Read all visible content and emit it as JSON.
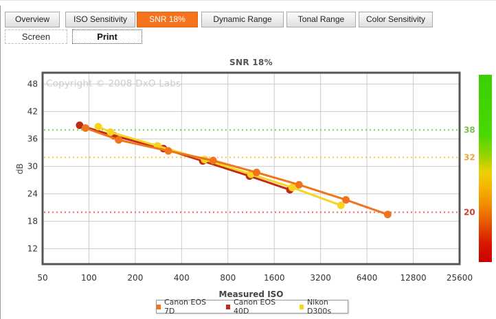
{
  "tabs": {
    "items": [
      {
        "label": "Overview",
        "active": false
      },
      {
        "label": "ISO Sensitivity",
        "active": false
      },
      {
        "label": "SNR 18%",
        "active": true
      },
      {
        "label": "Dynamic Range",
        "active": false
      },
      {
        "label": "Tonal Range",
        "active": false
      },
      {
        "label": "Color Sensitivity",
        "active": false
      }
    ]
  },
  "subtabs": {
    "items": [
      {
        "label": "Screen",
        "active": false
      },
      {
        "label": "Print",
        "active": true
      }
    ]
  },
  "watermark": "Copyright © 2008 DxO Labs",
  "accent_color": "#f5731d",
  "chart_data": {
    "type": "line",
    "title": "SNR 18%",
    "xlabel": "Measured ISO",
    "ylabel": "dB",
    "x_scale": "log2",
    "grid": true,
    "legend_position": "bottom",
    "xlim": [
      50,
      25600
    ],
    "ylim": [
      8.65,
      50.5
    ],
    "xticks": [
      50,
      100,
      200,
      400,
      800,
      1600,
      3200,
      6400,
      12800,
      25600
    ],
    "yticks": [
      12,
      18,
      24,
      30,
      36,
      42,
      48
    ],
    "ref_lines": [
      {
        "value": 38,
        "label": "38",
        "line_color": "#66d944",
        "label_color": "#7fbf4d"
      },
      {
        "value": 32,
        "label": "32",
        "line_color": "#fdc348",
        "label_color": "#efa73c"
      },
      {
        "value": 20,
        "label": "20",
        "line_color": "#ef6352",
        "label_color": "#cc3f33"
      }
    ],
    "series": [
      {
        "name": "Canon EOS 7D",
        "color": "#f0741c",
        "points": [
          [
            95,
            38.4
          ],
          [
            156,
            35.8
          ],
          [
            328,
            33.4
          ],
          [
            641,
            31.3
          ],
          [
            1228,
            28.7
          ],
          [
            2317,
            26.0
          ],
          [
            4676,
            22.7
          ],
          [
            8730,
            19.5
          ]
        ]
      },
      {
        "name": "Canon EOS 40D",
        "color": "#c22a18",
        "points": [
          [
            87,
            39.0
          ],
          [
            146,
            36.7
          ],
          [
            305,
            33.9
          ],
          [
            549,
            31.2
          ],
          [
            1105,
            27.9
          ],
          [
            2021,
            24.9
          ]
        ]
      },
      {
        "name": "Nikon D300s",
        "color": "#f8d41e",
        "points": [
          [
            115,
            38.7
          ],
          [
            138,
            37.5
          ],
          [
            279,
            34.5
          ],
          [
            564,
            31.5
          ],
          [
            1129,
            28.3
          ],
          [
            2091,
            25.4
          ],
          [
            4337,
            21.5
          ]
        ]
      }
    ],
    "draw_order": [
      1,
      2,
      0
    ],
    "gradient_bar": {
      "stops": [
        {
          "pos": 0.0,
          "color": "#3ad000"
        },
        {
          "pos": 0.32,
          "color": "#4ad800"
        },
        {
          "pos": 0.44,
          "color": "#9ed300"
        },
        {
          "pos": 0.52,
          "color": "#edd104"
        },
        {
          "pos": 0.6,
          "color": "#f6b500"
        },
        {
          "pos": 0.7,
          "color": "#f18a00"
        },
        {
          "pos": 0.8,
          "color": "#e55200"
        },
        {
          "pos": 0.9,
          "color": "#d61800"
        },
        {
          "pos": 1.0,
          "color": "#cc0000"
        }
      ]
    }
  }
}
